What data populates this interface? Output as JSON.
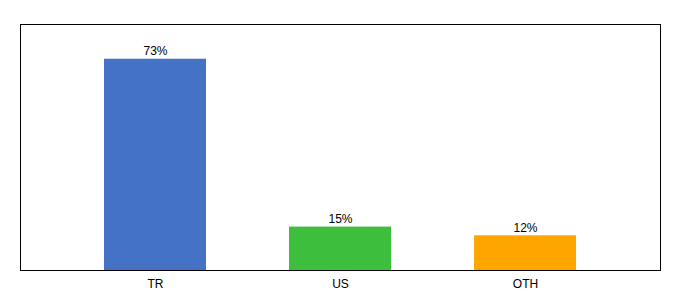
{
  "chart_data": {
    "type": "bar",
    "categories": [
      "TR",
      "US",
      "OTH"
    ],
    "values": [
      73,
      15,
      12
    ],
    "value_labels": [
      "73%",
      "15%",
      "12%"
    ],
    "colors": [
      "#4472C4",
      "#3DBE3D",
      "#FFA500"
    ],
    "ylim": [
      0,
      85
    ],
    "yticks": [],
    "data_labels": true,
    "tick_labels": "x",
    "grid": false
  }
}
